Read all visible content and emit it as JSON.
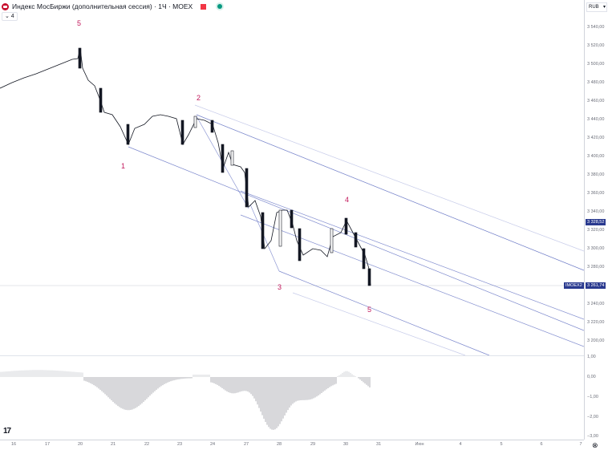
{
  "header": {
    "title": "Индекс МосБиржи (дополнительная сессия) · 1Ч · MOEX",
    "collapse_label": "⌄ 4"
  },
  "price_axis": {
    "currency": "RUB",
    "ticks": [
      "3 540,00",
      "3 520,00",
      "3 500,00",
      "3 480,00",
      "3 460,00",
      "3 440,00",
      "3 420,00",
      "3 400,00",
      "3 380,00",
      "3 360,00",
      "3 340,00",
      "3 320,00",
      "3 300,00",
      "3 280,00",
      "3 240,00",
      "3 220,00",
      "3 200,00"
    ],
    "tag_high": "3 328,52",
    "tag_last": "3 261,74",
    "symbol_tag": "IMOEX2",
    "osc_ticks": [
      "1,00",
      "0,00",
      "−1,00",
      "−2,00",
      "−3,00"
    ]
  },
  "time_axis": {
    "labels": [
      "16",
      "17",
      "20",
      "21",
      "22",
      "23",
      "24",
      "27",
      "28",
      "29",
      "30",
      "31",
      "Июн",
      "4",
      "5",
      "6",
      "7"
    ]
  },
  "colors": {
    "accent": "#2a3a8f",
    "wave_label": "#c2185b",
    "channel_line": "#5c6bc0",
    "candle_down": "#131722",
    "candle_up": "#ffffff"
  },
  "chart_data": {
    "type": "candlestick",
    "title": "Индекс МосБиржи (дополнительная сессия) · 1Ч · MOEX",
    "xlabel": "",
    "ylabel": "RUB",
    "ylim": [
      3190,
      3550
    ],
    "x": [
      "16",
      "17",
      "20",
      "21",
      "22",
      "23",
      "24",
      "27",
      "28",
      "29",
      "30",
      "31"
    ],
    "series": [
      {
        "name": "approx_close_path",
        "values": [
          3475,
          3495,
          3515,
          3420,
          3440,
          3440,
          3400,
          3330,
          3310,
          3295,
          3330,
          3262
        ]
      }
    ],
    "last_price": 3261.74,
    "marked_level": 3328.52,
    "wave_annotations": [
      {
        "label": "5",
        "x": "20",
        "y": 3530
      },
      {
        "label": "1",
        "x": "21",
        "y": 3400
      },
      {
        "label": "2",
        "x": "23",
        "y": 3455
      },
      {
        "label": "3",
        "x": "28",
        "y": 3262
      },
      {
        "label": "4",
        "x": "30",
        "y": 3350
      },
      {
        "label": "5",
        "x": "30",
        "y": 3245
      }
    ],
    "indicator": {
      "name": "oscillator histogram",
      "ylim": [
        -3,
        1
      ],
      "ticks": [
        1,
        0,
        -1,
        -2,
        -3
      ],
      "min_value": -2.6,
      "max_value": 0.4
    },
    "grid": false,
    "legend": "none"
  }
}
